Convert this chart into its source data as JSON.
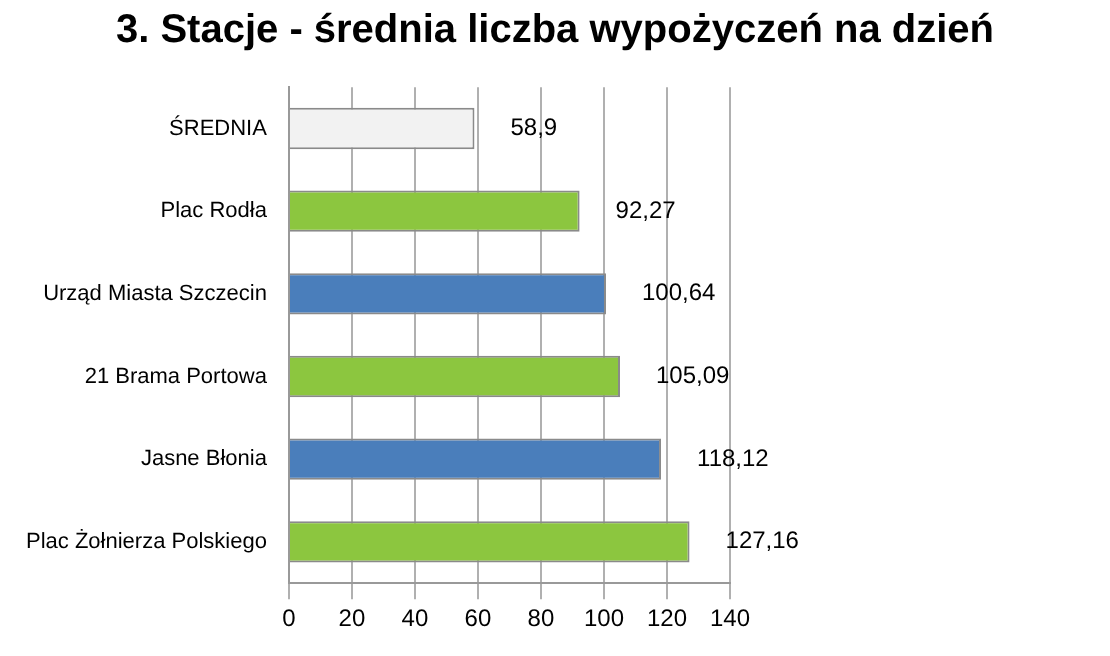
{
  "chart_data": {
    "type": "bar",
    "orientation": "horizontal",
    "title": "3. Stacje - średnia liczba wypożyczeń na dzień",
    "categories": [
      "ŚREDNIA",
      "Plac Rodła",
      "Urząd Miasta Szczecin",
      "21 Brama Portowa",
      "Jasne Błonia",
      "Plac Żołnierza Polskiego"
    ],
    "values": [
      58.9,
      92.27,
      100.64,
      105.09,
      118.12,
      127.16
    ],
    "colors": [
      "#f2f2f2",
      "#8cc63f",
      "#4a7ebb",
      "#8cc63f",
      "#4a7ebb",
      "#8cc63f"
    ],
    "value_labels": [
      "58,9",
      "92,27",
      "100,64",
      "105,09",
      "118,12",
      "127,16"
    ],
    "xlim": [
      0,
      140
    ],
    "xticks": [
      0,
      20,
      40,
      60,
      80,
      100,
      120,
      140
    ],
    "grid": "x",
    "legend": false
  }
}
